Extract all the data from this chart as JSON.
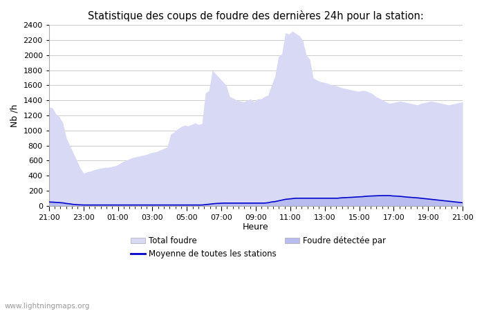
{
  "title": "Statistique des coups de foudre des dernières 24h pour la station:",
  "xlabel": "Heure",
  "ylabel": "Nb /h",
  "xlim": [
    0,
    24
  ],
  "ylim": [
    0,
    2400
  ],
  "yticks": [
    0,
    200,
    400,
    600,
    800,
    1000,
    1200,
    1400,
    1600,
    1800,
    2000,
    2200,
    2400
  ],
  "xtick_labels": [
    "21:00",
    "23:00",
    "01:00",
    "03:00",
    "05:00",
    "07:00",
    "09:00",
    "11:00",
    "13:00",
    "15:00",
    "17:00",
    "19:00",
    "21:00"
  ],
  "xtick_positions": [
    0,
    2,
    4,
    6,
    8,
    10,
    12,
    14,
    16,
    18,
    20,
    22,
    24
  ],
  "background_color": "#ffffff",
  "grid_color": "#cccccc",
  "fill_color_total": "#d8daf5",
  "fill_color_detected": "#b8bcee",
  "line_color": "#0000cc",
  "watermark": "www.lightningmaps.org",
  "legend_labels": [
    "Total foudre",
    "Foudre détectée par",
    "Moyenne de toutes les stations"
  ],
  "total_foudre": [
    1310,
    1300,
    1220,
    1180,
    1100,
    900,
    800,
    700,
    600,
    500,
    430,
    450,
    460,
    480,
    490,
    500,
    510,
    510,
    520,
    530,
    550,
    580,
    600,
    620,
    640,
    650,
    660,
    670,
    680,
    700,
    710,
    720,
    740,
    760,
    780,
    950,
    980,
    1020,
    1050,
    1070,
    1060,
    1080,
    1100,
    1080,
    1090,
    1500,
    1530,
    1800,
    1750,
    1700,
    1650,
    1600,
    1450,
    1430,
    1400,
    1390,
    1380,
    1400,
    1420,
    1380,
    1420,
    1420,
    1450,
    1470,
    1600,
    1720,
    1980,
    2020,
    2300,
    2280,
    2320,
    2290,
    2260,
    2200,
    2000,
    1950,
    1700,
    1670,
    1650,
    1640,
    1630,
    1610,
    1600,
    1590,
    1570,
    1560,
    1550,
    1540,
    1530,
    1520,
    1530,
    1530,
    1510,
    1490,
    1450,
    1430,
    1400,
    1380,
    1360,
    1370,
    1380,
    1390,
    1380,
    1370,
    1360,
    1350,
    1340,
    1360,
    1370,
    1380,
    1390,
    1380,
    1370,
    1360,
    1350,
    1340,
    1350,
    1360,
    1370,
    1380
  ],
  "detected_foudre": [
    50,
    48,
    45,
    42,
    38,
    30,
    25,
    18,
    14,
    12,
    10,
    10,
    10,
    10,
    10,
    10,
    10,
    10,
    10,
    10,
    10,
    10,
    10,
    10,
    10,
    10,
    10,
    10,
    10,
    10,
    10,
    10,
    10,
    10,
    10,
    10,
    10,
    10,
    10,
    10,
    10,
    10,
    10,
    10,
    10,
    15,
    20,
    25,
    30,
    32,
    35,
    35,
    35,
    35,
    35,
    35,
    35,
    35,
    35,
    35,
    35,
    35,
    35,
    40,
    50,
    55,
    65,
    75,
    85,
    90,
    95,
    100,
    100,
    100,
    100,
    100,
    100,
    100,
    100,
    100,
    100,
    100,
    100,
    100,
    105,
    107,
    110,
    112,
    115,
    118,
    120,
    125,
    128,
    130,
    132,
    134,
    135,
    135,
    135,
    130,
    128,
    125,
    120,
    115,
    112,
    108,
    105,
    100,
    95,
    90,
    85,
    80,
    75,
    70,
    65,
    60,
    55,
    50,
    45,
    40
  ],
  "n_points": 120
}
